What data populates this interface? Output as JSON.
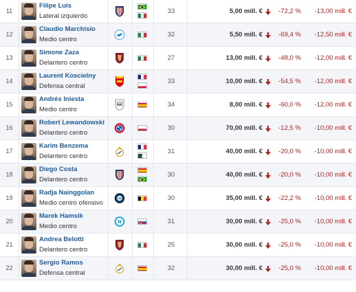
{
  "rows": [
    {
      "rank": "11",
      "name": "Filipe Luís",
      "position": "Lateral izquierdo",
      "club": "atletico-madrid-crest",
      "flags": [
        "brazil-flag",
        "italy-flag"
      ],
      "age": "33",
      "value": "5,00 mill. €",
      "pct": "-72,2 %",
      "diff": "-13,00 mill. €"
    },
    {
      "rank": "12",
      "name": "Claudio Marchisio",
      "position": "Medio centro",
      "club": "zenit-crest",
      "flags": [
        "italy-flag"
      ],
      "age": "32",
      "value": "5,50 mill. €",
      "pct": "-69,4 %",
      "diff": "-12,50 mill. €"
    },
    {
      "rank": "13",
      "name": "Simone Zaza",
      "position": "Delantero centro",
      "club": "torino-crest",
      "flags": [
        "italy-flag"
      ],
      "age": "27",
      "value": "13,00 mill. €",
      "pct": "-48,0 %",
      "diff": "-12,00 mill. €"
    },
    {
      "rank": "14",
      "name": "Laurent Koscielny",
      "position": "Defensa central",
      "club": "arsenal-crest",
      "flags": [
        "france-flag",
        "poland-flag"
      ],
      "age": "33",
      "value": "10,00 mill. €",
      "pct": "-54,5 %",
      "diff": "-12,00 mill. €"
    },
    {
      "rank": "15",
      "name": "Andrés Iniesta",
      "position": "Medio centro",
      "club": "vissel-kobe-crest",
      "flags": [
        "spain-flag"
      ],
      "age": "34",
      "value": "8,00 mill. €",
      "pct": "-60,0 %",
      "diff": "-12,00 mill. €"
    },
    {
      "rank": "16",
      "name": "Robert Lewandowski",
      "position": "Delantero centro",
      "club": "bayern-crest",
      "flags": [
        "poland-flag"
      ],
      "age": "30",
      "value": "70,00 mill. €",
      "pct": "-12,5 %",
      "diff": "-10,00 mill. €"
    },
    {
      "rank": "17",
      "name": "Karim Benzema",
      "position": "Delantero centro",
      "club": "real-madrid-crest",
      "flags": [
        "france-flag",
        "algeria-flag"
      ],
      "age": "31",
      "value": "40,00 mill. €",
      "pct": "-20,0 %",
      "diff": "-10,00 mill. €"
    },
    {
      "rank": "18",
      "name": "Diego Costa",
      "position": "Delantero centro",
      "club": "atletico-madrid-crest",
      "flags": [
        "spain-flag",
        "brazil-flag"
      ],
      "age": "30",
      "value": "40,00 mill. €",
      "pct": "-20,0 %",
      "diff": "-10,00 mill. €"
    },
    {
      "rank": "19",
      "name": "Radja Nainggolan",
      "position": "Medio centro ofensivo",
      "club": "inter-crest",
      "flags": [
        "belgium-flag"
      ],
      "age": "30",
      "value": "35,00 mill. €",
      "pct": "-22,2 %",
      "diff": "-10,00 mill. €"
    },
    {
      "rank": "20",
      "name": "Marek Hamsik",
      "position": "Medio centro",
      "club": "napoli-crest",
      "flags": [
        "slovakia-flag"
      ],
      "age": "31",
      "value": "30,00 mill. €",
      "pct": "-25,0 %",
      "diff": "-10,00 mill. €"
    },
    {
      "rank": "21",
      "name": "Andrea Belotti",
      "position": "Delantero centro",
      "club": "torino-crest",
      "flags": [
        "italy-flag"
      ],
      "age": "25",
      "value": "30,00 mill. €",
      "pct": "-25,0 %",
      "diff": "-10,00 mill. €"
    },
    {
      "rank": "22",
      "name": "Sergio Ramos",
      "position": "Defensa central",
      "club": "real-madrid-crest",
      "flags": [
        "spain-flag"
      ],
      "age": "32",
      "value": "30,00 mill. €",
      "pct": "-25,0 %",
      "diff": "-10,00 mill. €"
    }
  ],
  "colors": {
    "name_link": "#1d5b9b",
    "negative": "#b22222",
    "row_alt": "#f3f5f8",
    "border": "#e3e6ea"
  },
  "icons": {
    "down_arrow": "down-arrow-icon"
  }
}
